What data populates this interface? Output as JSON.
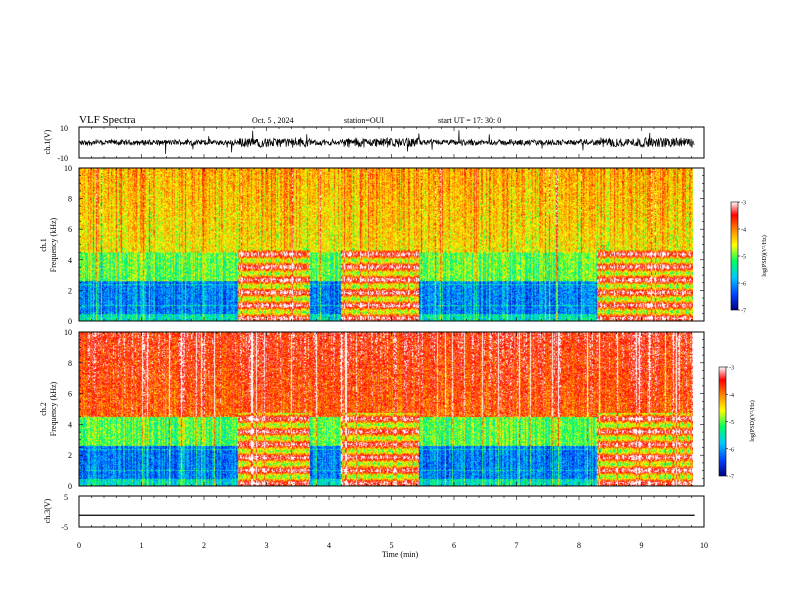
{
  "header": {
    "title": "VLF Spectra",
    "date": "Oct. 5 , 2024",
    "station": "station=OUI",
    "start": "start  UT =   17: 30: 0"
  },
  "chart_data": [
    {
      "type": "line",
      "panel": "ch1-waveform",
      "ylabel": "ch.1(V)",
      "ylim": [
        -10,
        10
      ],
      "yticks": [
        "10",
        "-10"
      ],
      "xlim": [
        0,
        10
      ],
      "note_color": "#000000"
    },
    {
      "type": "heatmap",
      "panel": "ch1-spectrogram",
      "ylabel_lines": [
        "ch.1",
        "Frequency (kHz)"
      ],
      "ylim": [
        0,
        10
      ],
      "yticks": [
        "0",
        "2",
        "4",
        "6",
        "8",
        "10"
      ],
      "xlim": [
        0,
        10
      ],
      "colorbar": {
        "label": "log(PSD)(V²/Hz)",
        "range": [
          -7,
          -3
        ],
        "ticks": [
          "-3",
          "-4",
          "-5",
          "-6",
          "-7"
        ],
        "colors": [
          "#0000a0",
          "#0050ff",
          "#00c8ff",
          "#00ff80",
          "#ffff00",
          "#ff8000",
          "#ff0000",
          "#ffffff"
        ]
      }
    },
    {
      "type": "heatmap",
      "panel": "ch2-spectrogram",
      "ylabel_lines": [
        "ch.2",
        "Frequency (kHz)"
      ],
      "ylim": [
        0,
        10
      ],
      "yticks": [
        "0",
        "2",
        "4",
        "6",
        "8",
        "10"
      ],
      "xlim": [
        0,
        10
      ],
      "colorbar": {
        "label": "log(PSD)(V²/Hz)",
        "range": [
          -7,
          -3
        ],
        "ticks": [
          "-3",
          "-4",
          "-5",
          "-6",
          "-7"
        ],
        "colors": [
          "#0000a0",
          "#0050ff",
          "#00c8ff",
          "#00ff80",
          "#ffff00",
          "#ff8000",
          "#ff0000",
          "#ffffff"
        ]
      }
    },
    {
      "type": "line",
      "panel": "ch3-waveform",
      "ylabel": "ch.3(V)",
      "ylim": [
        -5,
        5
      ],
      "yticks": [
        "5",
        "-5"
      ],
      "xlim": [
        0,
        10
      ],
      "series": [
        {
          "x": [
            0,
            9.85
          ],
          "y": [
            -1.2,
            -1.2
          ]
        }
      ]
    }
  ],
  "xaxis": {
    "label": "Time (min)",
    "ticks": [
      "0",
      "1",
      "2",
      "3",
      "4",
      "5",
      "6",
      "7",
      "8",
      "9",
      "10"
    ],
    "range": [
      0,
      10
    ]
  },
  "data_end_min": 9.85,
  "active_intervals_min": [
    [
      2.55,
      3.7
    ],
    [
      4.2,
      5.45
    ],
    [
      8.3,
      9.85
    ]
  ]
}
